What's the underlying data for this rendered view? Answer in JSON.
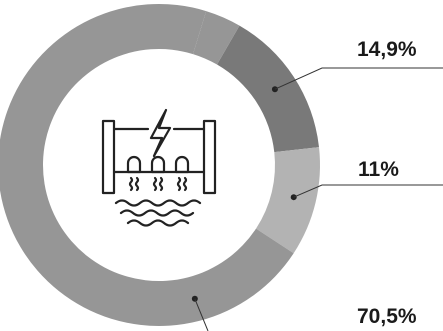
{
  "chart_data": {
    "type": "pie",
    "variant": "donut",
    "title": "",
    "center_icon": "hydroelectric-dam-icon",
    "slices": [
      {
        "label": "14,9%",
        "value": 14.9,
        "color": "#797979"
      },
      {
        "label": "11%",
        "value": 11.0,
        "color": "#b3b3b3"
      },
      {
        "label": "70,5%",
        "value": 70.5,
        "color": "#969696"
      },
      {
        "label": "",
        "value": 3.6,
        "color": "#969696"
      }
    ]
  }
}
